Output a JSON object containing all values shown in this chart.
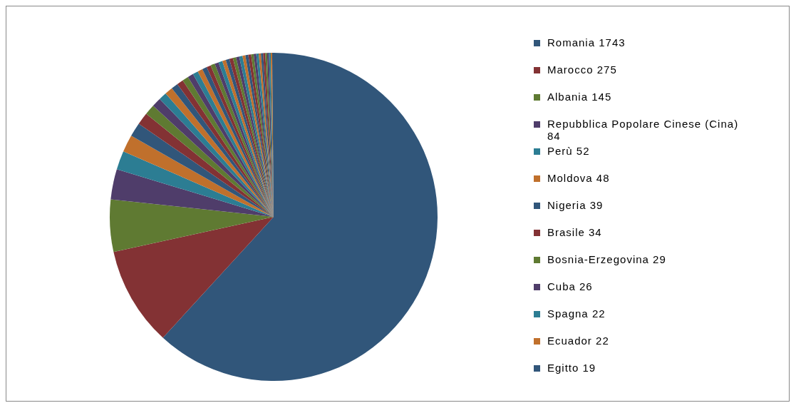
{
  "chart_data": {
    "type": "pie",
    "categories": [
      "Romania",
      "Marocco",
      "Albania",
      "Repubblica Popolare Cinese (Cina)",
      "Perù",
      "Moldova",
      "Nigeria",
      "Brasile",
      "Bosnia-Erzegovina",
      "Cuba",
      "Spagna",
      "Ecuador",
      "Egitto",
      null,
      null,
      null,
      null,
      null,
      null,
      null,
      null,
      null,
      null,
      null,
      null,
      null,
      null,
      null,
      null,
      null,
      null,
      null,
      null,
      null,
      null,
      null,
      null,
      null,
      null,
      null,
      null,
      null,
      null
    ],
    "values": [
      1743,
      275,
      145,
      84,
      52,
      48,
      39,
      34,
      29,
      26,
      22,
      22,
      19,
      18,
      17,
      16,
      15,
      14,
      13,
      12,
      12,
      11,
      11,
      10,
      10,
      10,
      9,
      9,
      9,
      8,
      8,
      8,
      7,
      7,
      7,
      6,
      6,
      6,
      5,
      5,
      5,
      4,
      4
    ],
    "value_labels": [
      "1743",
      "275",
      "145",
      "84",
      "52",
      "48",
      "39",
      "34",
      "29",
      "26",
      "22",
      "22",
      "19",
      null,
      null,
      null,
      null,
      null,
      null,
      null,
      null,
      null,
      null,
      null,
      null,
      null,
      null,
      null,
      null,
      null,
      null,
      null,
      null,
      null,
      null,
      null,
      null,
      null,
      null,
      null,
      null,
      null,
      null
    ],
    "colors": [
      "#31567a",
      "#833234",
      "#5f7a32",
      "#4f3d6a",
      "#2c7d93",
      "#c0702c",
      "#31567a",
      "#833234",
      "#5f7a32",
      "#4f3d6a",
      "#2c7d93",
      "#c0702c",
      "#31567a",
      "#833234",
      "#5f7a32",
      "#4f3d6a",
      "#2c7d93",
      "#c0702c",
      "#31567a",
      "#833234",
      "#5f7a32",
      "#4f3d6a",
      "#2c7d93",
      "#c0702c",
      "#31567a",
      "#833234",
      "#5f7a32",
      "#4f3d6a",
      "#2c7d93",
      "#c0702c",
      "#31567a",
      "#833234",
      "#5f7a32",
      "#4f3d6a",
      "#2c7d93",
      "#c0702c",
      "#31567a",
      "#833234",
      "#5f7a32",
      "#4f3d6a",
      "#2c7d93",
      "#c0702c",
      "#31567a"
    ],
    "legend": "right"
  }
}
